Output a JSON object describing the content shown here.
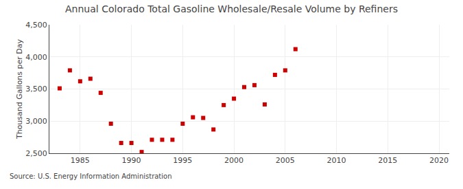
{
  "chart_data": {
    "type": "scatter",
    "title": "Annual Colorado Total Gasoline Wholesale/Resale Volume by Refiners",
    "ylabel": "Thousand Gallons per Day",
    "annotations": [
      "Source: U.S. Energy Information Administration"
    ],
    "x": [
      1983,
      1984,
      1985,
      1986,
      1987,
      1988,
      1989,
      1990,
      1991,
      1992,
      1993,
      1994,
      1995,
      1996,
      1997,
      1998,
      1999,
      2000,
      2001,
      2002,
      2003,
      2004,
      2005,
      2006
    ],
    "values": [
      3510,
      3790,
      3620,
      3660,
      3440,
      2960,
      2660,
      2660,
      2520,
      2710,
      2710,
      2710,
      2960,
      3060,
      3050,
      2870,
      3250,
      3350,
      3530,
      3560,
      3260,
      3720,
      3790,
      4120
    ],
    "color": "#cc0000",
    "marker": "square",
    "xlim": [
      1982,
      2021
    ],
    "xticks": [
      1985,
      1990,
      1995,
      2000,
      2005,
      2010,
      2015,
      2020
    ],
    "ylim": [
      2500,
      4500
    ],
    "yticks": [
      {
        "value": 2500,
        "label": "2,500"
      },
      {
        "value": 3000,
        "label": "3,000"
      },
      {
        "value": 3500,
        "label": "3,500"
      },
      {
        "value": 4000,
        "label": "4,000"
      },
      {
        "value": 4500,
        "label": "4,500"
      }
    ],
    "grid": true
  }
}
